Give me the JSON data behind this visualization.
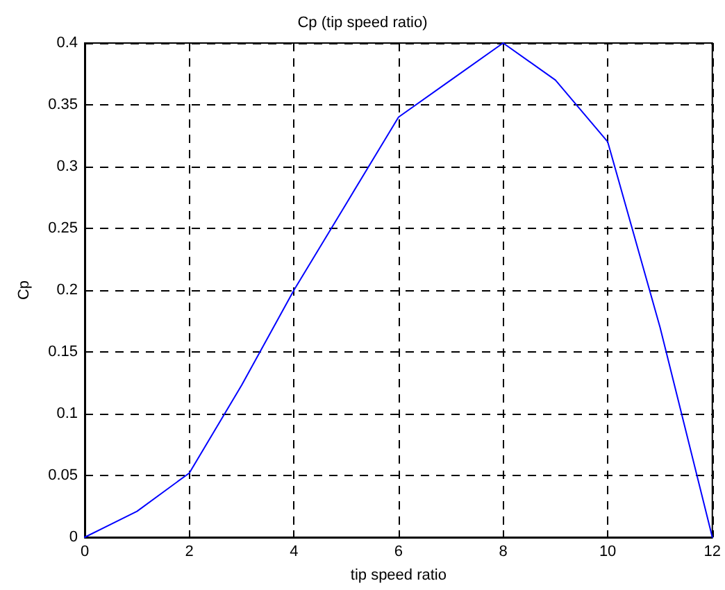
{
  "chart_data": {
    "type": "line",
    "title": "Cp (tip speed ratio)",
    "xlabel": "tip speed ratio",
    "ylabel": "Cp",
    "x": [
      0,
      1,
      2,
      3,
      4,
      5,
      6,
      7,
      8,
      9,
      10,
      11,
      12
    ],
    "series": [
      {
        "color": "#0000ff",
        "values": [
          0,
          0.021,
          0.052,
          0.123,
          0.2,
          0.27,
          0.34,
          0.37,
          0.4,
          0.37,
          0.32,
          0.17,
          0
        ]
      }
    ],
    "xlim": [
      0,
      12
    ],
    "xticks": [
      0,
      2,
      4,
      6,
      8,
      10,
      12
    ],
    "ylim": [
      0,
      0.4
    ],
    "yticks": [
      0,
      0.05,
      0.1,
      0.15,
      0.2,
      0.25,
      0.3,
      0.35,
      0.4
    ],
    "grid": true,
    "line_style": "solid",
    "marker": "none"
  }
}
